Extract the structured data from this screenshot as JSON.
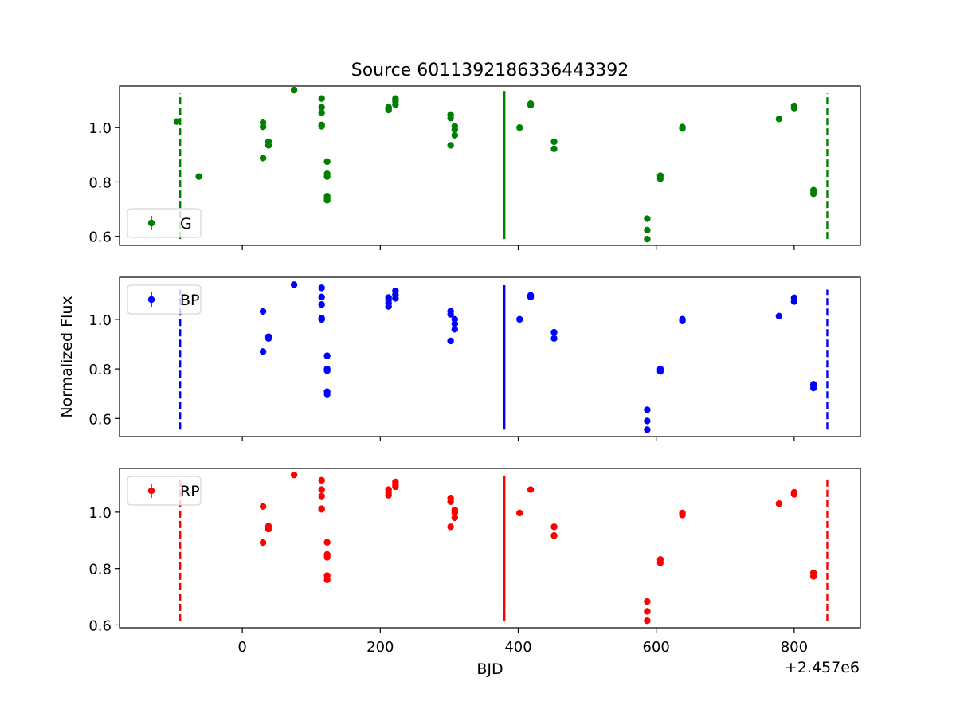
{
  "figure": {
    "title": "Source 6011392186336443392",
    "ylabel": "Normalized Flux",
    "xlabel": "BJD",
    "offset_text": "+2.457e6"
  },
  "chart_data": {
    "type": "scatter",
    "x_axis": {
      "range": [
        -178,
        896
      ],
      "ticks": [
        0,
        200,
        400,
        600,
        800
      ]
    },
    "x_offset": 2457000,
    "panels": [
      {
        "name": "G",
        "color": "#008000",
        "y_range": [
          0.567,
          1.153
        ],
        "y_ticks": [
          0.6,
          0.8,
          1.0
        ],
        "y_tick_labels": [
          "0.6",
          "0.8",
          "1.0"
        ],
        "legend": "lower-left",
        "vlines": [
          {
            "x": -90,
            "y": [
              0.59,
              1.125
            ],
            "style": "dashed"
          },
          {
            "x": 380,
            "y": [
              0.59,
              1.135
            ],
            "style": "solid"
          },
          {
            "x": 848,
            "y": [
              0.59,
              1.125
            ],
            "style": "dashed"
          }
        ],
        "points": [
          [
            -95,
            1.022
          ],
          [
            -63,
            0.82
          ],
          [
            30,
            1.018
          ],
          [
            30,
            1.003
          ],
          [
            30,
            0.888
          ],
          [
            38,
            0.948
          ],
          [
            38,
            0.935
          ],
          [
            75,
            1.138
          ],
          [
            115,
            1.107
          ],
          [
            115,
            1.075
          ],
          [
            115,
            1.055
          ],
          [
            115,
            1.01
          ],
          [
            115,
            1.005
          ],
          [
            123,
            0.875
          ],
          [
            123,
            0.83
          ],
          [
            123,
            0.82
          ],
          [
            123,
            0.748
          ],
          [
            123,
            0.74
          ],
          [
            123,
            0.733
          ],
          [
            212,
            1.075
          ],
          [
            212,
            1.065
          ],
          [
            212,
            1.07
          ],
          [
            222,
            1.107
          ],
          [
            222,
            1.097
          ],
          [
            222,
            1.085
          ],
          [
            302,
            1.048
          ],
          [
            302,
            1.035
          ],
          [
            302,
            0.935
          ],
          [
            308,
            1.005
          ],
          [
            308,
            0.992
          ],
          [
            308,
            0.972
          ],
          [
            402,
            1.0
          ],
          [
            418,
            1.088
          ],
          [
            418,
            1.083
          ],
          [
            452,
            0.948
          ],
          [
            452,
            0.922
          ],
          [
            587,
            0.665
          ],
          [
            587,
            0.623
          ],
          [
            587,
            0.59
          ],
          [
            606,
            0.823
          ],
          [
            606,
            0.812
          ],
          [
            638,
            1.002
          ],
          [
            638,
            0.997
          ],
          [
            778,
            1.032
          ],
          [
            800,
            1.08
          ],
          [
            800,
            1.072
          ],
          [
            828,
            0.77
          ],
          [
            828,
            0.757
          ]
        ]
      },
      {
        "name": "BP",
        "color": "#0000ff",
        "y_range": [
          0.527,
          1.17
        ],
        "y_ticks": [
          0.6,
          0.8,
          1.0
        ],
        "y_tick_labels": [
          "0.6",
          "0.8",
          "1.0"
        ],
        "legend": "upper-left",
        "vlines": [
          {
            "x": -90,
            "y": [
              0.555,
              1.12
            ],
            "style": "dashed"
          },
          {
            "x": 380,
            "y": [
              0.555,
              1.138
            ],
            "style": "solid"
          },
          {
            "x": 848,
            "y": [
              0.555,
              1.12
            ],
            "style": "dashed"
          }
        ],
        "points": [
          [
            30,
            1.032
          ],
          [
            30,
            0.87
          ],
          [
            38,
            0.93
          ],
          [
            38,
            0.923
          ],
          [
            75,
            1.14
          ],
          [
            115,
            1.127
          ],
          [
            115,
            1.09
          ],
          [
            115,
            1.06
          ],
          [
            115,
            1.005
          ],
          [
            115,
            1.0
          ],
          [
            123,
            0.853
          ],
          [
            123,
            0.8
          ],
          [
            123,
            0.793
          ],
          [
            123,
            0.708
          ],
          [
            123,
            0.698
          ],
          [
            212,
            1.088
          ],
          [
            212,
            1.078
          ],
          [
            212,
            1.065
          ],
          [
            212,
            1.052
          ],
          [
            222,
            1.115
          ],
          [
            222,
            1.1
          ],
          [
            222,
            1.085
          ],
          [
            302,
            1.033
          ],
          [
            302,
            1.02
          ],
          [
            302,
            0.913
          ],
          [
            308,
            1.0
          ],
          [
            308,
            0.982
          ],
          [
            308,
            0.96
          ],
          [
            402,
            1.0
          ],
          [
            418,
            1.097
          ],
          [
            418,
            1.09
          ],
          [
            452,
            0.948
          ],
          [
            452,
            0.923
          ],
          [
            587,
            0.635
          ],
          [
            587,
            0.59
          ],
          [
            587,
            0.555
          ],
          [
            606,
            0.8
          ],
          [
            606,
            0.79
          ],
          [
            638,
            1.0
          ],
          [
            638,
            0.994
          ],
          [
            778,
            1.013
          ],
          [
            800,
            1.087
          ],
          [
            800,
            1.072
          ],
          [
            828,
            0.738
          ],
          [
            828,
            0.723
          ]
        ]
      },
      {
        "name": "RP",
        "color": "#ff0000",
        "y_range": [
          0.59,
          1.155
        ],
        "y_ticks": [
          0.6,
          0.8,
          1.0
        ],
        "y_tick_labels": [
          "0.6",
          "0.8",
          "1.0"
        ],
        "legend": "upper-left",
        "vlines": [
          {
            "x": -90,
            "y": [
              0.613,
              1.12
            ],
            "style": "dashed"
          },
          {
            "x": 380,
            "y": [
              0.613,
              1.13
            ],
            "style": "solid"
          },
          {
            "x": 848,
            "y": [
              0.613,
              1.12
            ],
            "style": "dashed"
          }
        ],
        "points": [
          [
            30,
            1.02
          ],
          [
            30,
            0.892
          ],
          [
            38,
            0.95
          ],
          [
            38,
            0.94
          ],
          [
            75,
            1.132
          ],
          [
            115,
            1.113
          ],
          [
            115,
            1.08
          ],
          [
            115,
            1.057
          ],
          [
            115,
            1.012
          ],
          [
            115,
            1.01
          ],
          [
            123,
            0.893
          ],
          [
            123,
            0.85
          ],
          [
            123,
            0.84
          ],
          [
            123,
            0.775
          ],
          [
            123,
            0.76
          ],
          [
            212,
            1.08
          ],
          [
            212,
            1.07
          ],
          [
            212,
            1.06
          ],
          [
            222,
            1.107
          ],
          [
            222,
            1.098
          ],
          [
            222,
            1.09
          ],
          [
            302,
            1.05
          ],
          [
            302,
            1.037
          ],
          [
            302,
            0.948
          ],
          [
            308,
            1.008
          ],
          [
            308,
            0.998
          ],
          [
            308,
            0.98
          ],
          [
            402,
            0.997
          ],
          [
            418,
            1.08
          ],
          [
            452,
            0.948
          ],
          [
            452,
            0.917
          ],
          [
            587,
            0.683
          ],
          [
            587,
            0.648
          ],
          [
            587,
            0.615
          ],
          [
            606,
            0.832
          ],
          [
            606,
            0.82
          ],
          [
            638,
            0.997
          ],
          [
            638,
            0.99
          ],
          [
            778,
            1.03
          ],
          [
            800,
            1.07
          ],
          [
            800,
            1.063
          ],
          [
            828,
            0.785
          ],
          [
            828,
            0.772
          ]
        ]
      }
    ]
  }
}
